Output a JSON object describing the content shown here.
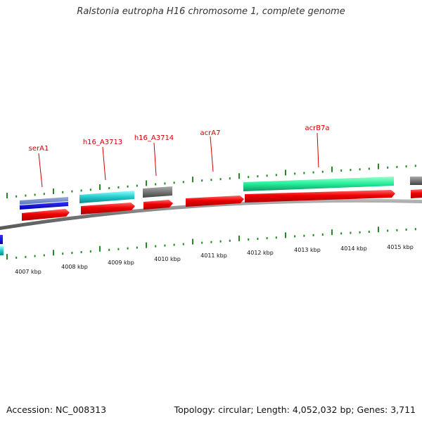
{
  "title": "Ralstonia eutropha H16 chromosome 1, complete genome",
  "footer": {
    "accession": "Accession: NC_008313",
    "summary": "Topology: circular; Length: 4,052,032 bp; Genes: 3,711"
  },
  "gene_labels": [
    {
      "id": "serA1",
      "text": "serA1"
    },
    {
      "id": "h16_A3713",
      "text": "h16_A3713"
    },
    {
      "id": "h16_A3714",
      "text": "h16_A3714"
    },
    {
      "id": "acrA7",
      "text": "acrA7"
    },
    {
      "id": "acrB7a",
      "text": "acrB7a"
    }
  ],
  "kbp_labels": [
    "4007 kbp",
    "4008 kbp",
    "4009 kbp",
    "4010 kbp",
    "4011 kbp",
    "4012 kbp",
    "4013 kbp",
    "4014 kbp",
    "4015 kbp"
  ],
  "colors": {
    "backbone": "#888888",
    "cds": "#ee0000",
    "gene_label": "#cc0000",
    "tick": "#228822",
    "gene_blue_light": "#6688cc",
    "gene_blue_dark": "#0000dd",
    "gene_cyan": "#22cccc",
    "gene_gray": "#777777",
    "gene_green": "#22ee99"
  }
}
